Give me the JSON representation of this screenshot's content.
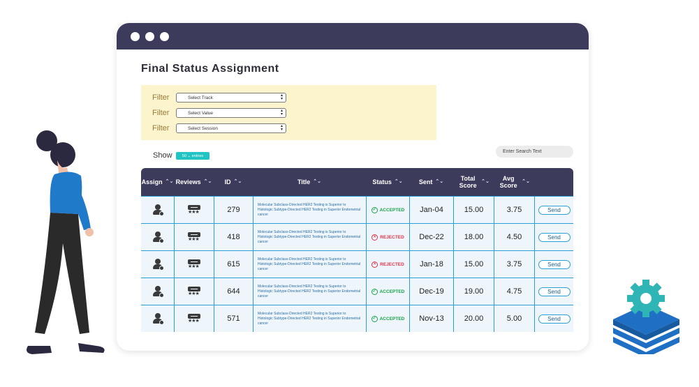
{
  "page": {
    "title": "Final Status Assignment"
  },
  "filters": [
    {
      "label": "Filter",
      "value": "Select Track"
    },
    {
      "label": "Filter",
      "value": "Select Value"
    },
    {
      "label": "Filter",
      "value": "Select Session"
    }
  ],
  "show": {
    "label": "Show",
    "entries": "50 ⌄ entries"
  },
  "search": {
    "placeholder": "Enter Search Text"
  },
  "table": {
    "headers": {
      "assign": "Assign",
      "reviews": "Reviews",
      "id": "ID",
      "title": "Title",
      "status": "Status",
      "sent": "Sent",
      "total_score": "Total Score",
      "avg_score": "Avg Score"
    },
    "rows": [
      {
        "id": "279",
        "title": "Molecular Subclass-Directed HER2 Testing is Superior to Histologic Subtype-Directed HER2 Testing in Superior Endometrial cancer",
        "status": "ACCEPTED",
        "sent": "Jan-04",
        "total": "15.00",
        "avg": "3.75",
        "action": "Send"
      },
      {
        "id": "418",
        "title": "Molecular Subclass-Directed HER2 Testing is Superior to Histologic Subtype-Directed HER2 Testing in Superior Endometrial cancer",
        "status": "REJECTED",
        "sent": "Dec-22",
        "total": "18.00",
        "avg": "4.50",
        "action": "Send"
      },
      {
        "id": "615",
        "title": "Molecular Subclass-Directed HER2 Testing is Superior to Histologic Subtype-Directed HER2 Testing in Superior Endometrial cancer",
        "status": "REJECTED",
        "sent": "Jan-18",
        "total": "15.00",
        "avg": "3.75",
        "action": "Send"
      },
      {
        "id": "644",
        "title": "Molecular Subclass-Directed HER2 Testing is Superior to Histologic Subtype-Directed HER2 Testing in Superior Endometrial cancer",
        "status": "ACCEPTED",
        "sent": "Dec-19",
        "total": "19.00",
        "avg": "4.75",
        "action": "Send"
      },
      {
        "id": "571",
        "title": "Molecular Subclass-Directed HER2 Testing is Superior to Histologic Subtype-Directed HER2 Testing in Superior Endometrial cancer",
        "status": "ACCEPTED",
        "sent": "Nov-13",
        "total": "20.00",
        "avg": "5.00",
        "action": "Send"
      }
    ]
  },
  "icons": {
    "assign": "user-check-icon",
    "reviews": "review-stars-icon",
    "sort": "sort-icon",
    "accepted": "check-circle-icon",
    "rejected": "x-circle-icon"
  },
  "colors": {
    "header": "#3d3b5c",
    "accepted": "#1aa34a",
    "rejected": "#e0334b",
    "accent": "#2a9fd6",
    "filter_bg": "#fbf4cc"
  }
}
